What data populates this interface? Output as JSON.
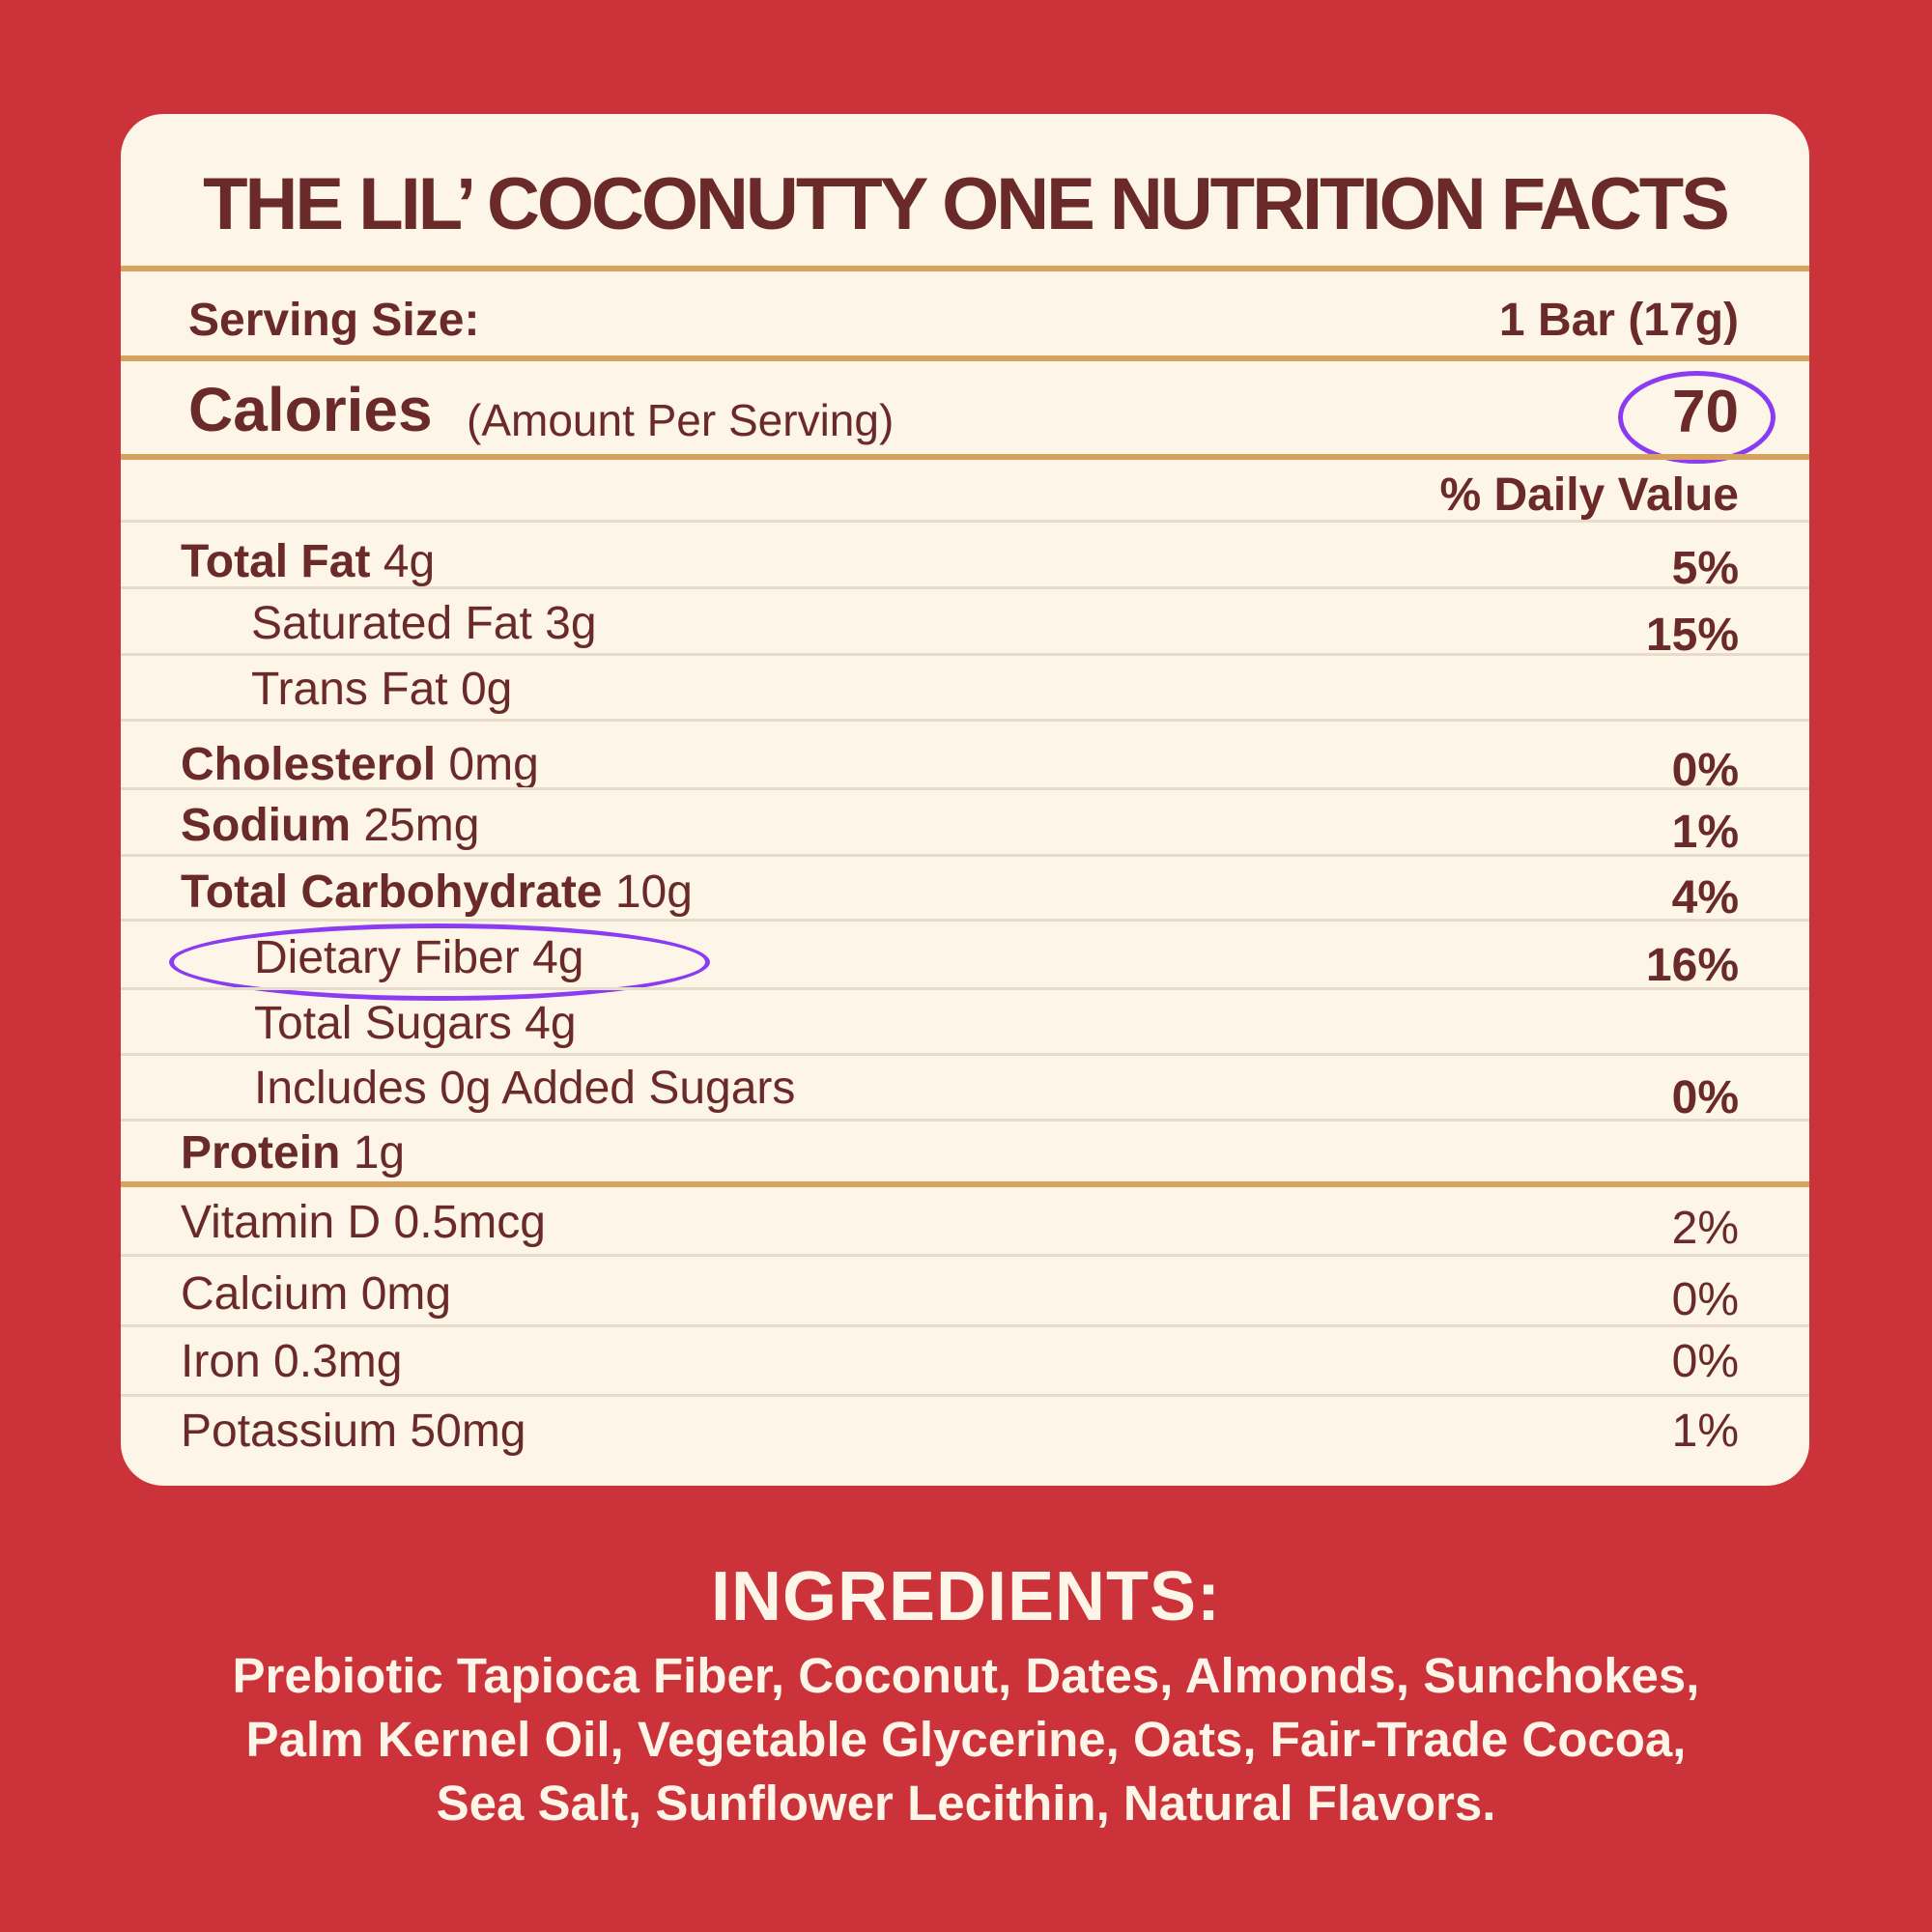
{
  "panel": {
    "title": "THE LIL’ COCONUTTY ONE NUTRITION FACTS",
    "serving": {
      "label": "Serving Size:",
      "value": "1 Bar (17g)"
    },
    "calories": {
      "label": "Calories",
      "note": "(Amount Per Serving)",
      "value": "70"
    },
    "daily_value_header": "% Daily Value",
    "nutrients": [
      {
        "bold": "Total Fat",
        "amount": " 4g",
        "dv": "5%"
      },
      {
        "bold": "",
        "amount": "Saturated Fat 3g",
        "dv": "15%"
      },
      {
        "bold": "",
        "amount": "Trans Fat 0g",
        "dv": ""
      },
      {
        "bold": "Cholesterol",
        "amount": " 0mg",
        "dv": "0%"
      },
      {
        "bold": "Sodium",
        "amount": " 25mg",
        "dv": "1%"
      },
      {
        "bold": "Total Carbohydrate",
        "amount": " 10g",
        "dv": "4%"
      },
      {
        "bold": "",
        "amount": "Dietary Fiber 4g",
        "dv": "16%"
      },
      {
        "bold": "",
        "amount": "Total Sugars 4g",
        "dv": ""
      },
      {
        "bold": "",
        "amount": "Includes 0g Added Sugars",
        "dv": "0%"
      },
      {
        "bold": "Protein",
        "amount": " 1g",
        "dv": ""
      }
    ],
    "vitamins": [
      {
        "label": "Vitamin D 0.5mcg",
        "dv": "2%"
      },
      {
        "label": "Calcium 0mg",
        "dv": "0%"
      },
      {
        "label": "Iron 0.3mg",
        "dv": "0%"
      },
      {
        "label": "Potassium 50mg",
        "dv": "1%"
      }
    ]
  },
  "ingredients": {
    "heading": "INGREDIENTS:",
    "lines": [
      "Prebiotic Tapioca Fiber, Coconut, Dates, Almonds, Sunchokes,",
      "Palm Kernel Oil, Vegetable Glycerine, Oats, Fair-Trade Cocoa,",
      "Sea Salt, Sunflower Lecithin, Natural Flavors."
    ]
  },
  "colors": {
    "background": "#cb323a",
    "panel": "#fdf5e7",
    "text": "#6b2a2a",
    "gold_rule": "#d6a25e",
    "highlight": "#8b3cf0"
  }
}
